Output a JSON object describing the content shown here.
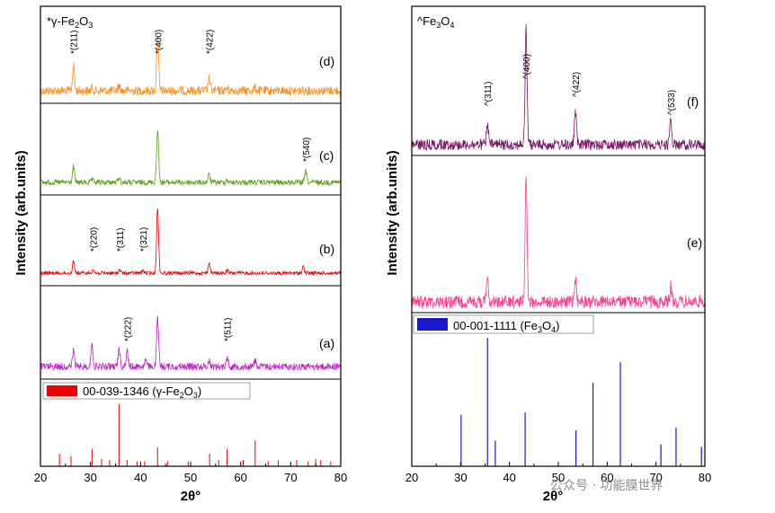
{
  "watermark": "公众号 · 功能膜世界",
  "chart_data": [
    {
      "type": "line",
      "panel": "left",
      "ylabel": "Intensity (arb.units)",
      "xlabel": "2θ°",
      "xlim": [
        20,
        80
      ],
      "xticks": [
        20,
        30,
        40,
        50,
        60,
        70,
        80
      ],
      "phase_note": "*γ-Fe2O3",
      "series": [
        {
          "name": "(d)",
          "color": "#ff8c1a",
          "peaks": [
            [
              26.6,
              0.45
            ],
            [
              30.3,
              0.05
            ],
            [
              35.7,
              0.1
            ],
            [
              43.4,
              1.0
            ],
            [
              53.7,
              0.22
            ],
            [
              57.3,
              0.05
            ],
            [
              62.9,
              0.06
            ]
          ],
          "annotations": [
            {
              "label": "*(211)",
              "x": 26.6
            },
            {
              "label": "*(400)",
              "x": 43.4
            },
            {
              "label": "*(422)",
              "x": 53.7
            }
          ]
        },
        {
          "name": "(c)",
          "color": "#5a9e1a",
          "peaks": [
            [
              26.6,
              0.25
            ],
            [
              30.3,
              0.04
            ],
            [
              35.7,
              0.08
            ],
            [
              43.4,
              0.85
            ],
            [
              53.7,
              0.12
            ],
            [
              57.3,
              0.04
            ],
            [
              73.0,
              0.18
            ]
          ],
          "annotations": [
            {
              "label": "*(540)",
              "x": 73.0
            }
          ]
        },
        {
          "name": "(b)",
          "color": "#e00000",
          "peaks": [
            [
              26.6,
              0.18
            ],
            [
              30.5,
              0.06
            ],
            [
              35.8,
              0.05
            ],
            [
              40.5,
              0.04
            ],
            [
              43.4,
              0.95
            ],
            [
              53.7,
              0.15
            ],
            [
              57.3,
              0.04
            ],
            [
              72.5,
              0.1
            ]
          ],
          "annotations": [
            {
              "label": "*(220)",
              "x": 30.5
            },
            {
              "label": "*(311)",
              "x": 35.8
            },
            {
              "label": "*(321)",
              "x": 40.5
            }
          ]
        },
        {
          "name": "(a)",
          "color": "#c020c8",
          "peaks": [
            [
              26.6,
              0.25
            ],
            [
              30.3,
              0.35
            ],
            [
              35.7,
              0.3
            ],
            [
              37.3,
              0.25
            ],
            [
              41.0,
              0.1
            ],
            [
              43.4,
              0.75
            ],
            [
              53.7,
              0.1
            ],
            [
              57.3,
              0.15
            ],
            [
              62.9,
              0.1
            ]
          ],
          "annotations": [
            {
              "label": "*(222)",
              "x": 37.3
            },
            {
              "label": "*(511)",
              "x": 57.3
            }
          ]
        }
      ],
      "reference": {
        "label_prefix": "00-039-1346 (γ-Fe",
        "label_sub1": "2",
        "label_mid": "O",
        "label_sub2": "3",
        "label_suffix": ")",
        "color": "#ee0000",
        "lines": [
          [
            23.8,
            0.2
          ],
          [
            26.1,
            0.16
          ],
          [
            30.3,
            0.28
          ],
          [
            32.2,
            0.12
          ],
          [
            33.8,
            0.1
          ],
          [
            35.7,
            1.0
          ],
          [
            37.3,
            0.1
          ],
          [
            39.3,
            0.08
          ],
          [
            40.8,
            0.08
          ],
          [
            43.4,
            0.3
          ],
          [
            45.4,
            0.08
          ],
          [
            49.5,
            0.08
          ],
          [
            53.8,
            0.2
          ],
          [
            55.6,
            0.1
          ],
          [
            57.3,
            0.28
          ],
          [
            60.5,
            0.1
          ],
          [
            62.9,
            0.42
          ],
          [
            65.5,
            0.08
          ],
          [
            67.5,
            0.1
          ],
          [
            71.2,
            0.1
          ],
          [
            73.5,
            0.08
          ],
          [
            75.0,
            0.12
          ],
          [
            76.0,
            0.1
          ],
          [
            78.0,
            0.08
          ]
        ]
      }
    },
    {
      "type": "line",
      "panel": "right",
      "ylabel": "Intensity (arb.units)",
      "xlabel": "2θ°",
      "xlim": [
        20,
        80
      ],
      "xticks": [
        20,
        30,
        40,
        50,
        60,
        70,
        80
      ],
      "phase_note": "^Fe3O4",
      "series": [
        {
          "name": "(f)",
          "color": "#7a1466",
          "peaks": [
            [
              35.5,
              0.18
            ],
            [
              43.4,
              1.0
            ],
            [
              53.5,
              0.3
            ],
            [
              73.0,
              0.22
            ]
          ],
          "annotations": [
            {
              "label": "^(311)",
              "x": 35.5
            },
            {
              "label": "^(400)",
              "x": 43.4
            },
            {
              "label": "^(422)",
              "x": 53.5
            },
            {
              "label": "^(533)",
              "x": 73.0
            }
          ]
        },
        {
          "name": "(e)",
          "color": "#ff3a8c",
          "peaks": [
            [
              35.5,
              0.18
            ],
            [
              43.4,
              1.0
            ],
            [
              53.5,
              0.18
            ],
            [
              73.0,
              0.12
            ]
          ],
          "annotations": []
        }
      ],
      "reference": {
        "label_prefix": "00-001-1111 (Fe",
        "label_sub1": "3",
        "label_mid": "O",
        "label_sub2": "4",
        "label_suffix": ")",
        "color": "#1a1acc",
        "lines": [
          [
            30.1,
            0.4
          ],
          [
            35.5,
            1.0
          ],
          [
            37.1,
            0.2
          ],
          [
            43.2,
            0.42
          ],
          [
            53.6,
            0.28
          ],
          [
            57.1,
            0.65
          ],
          [
            62.7,
            0.81
          ],
          [
            71.0,
            0.17
          ],
          [
            74.1,
            0.3
          ],
          [
            79.3,
            0.15
          ]
        ]
      }
    }
  ]
}
